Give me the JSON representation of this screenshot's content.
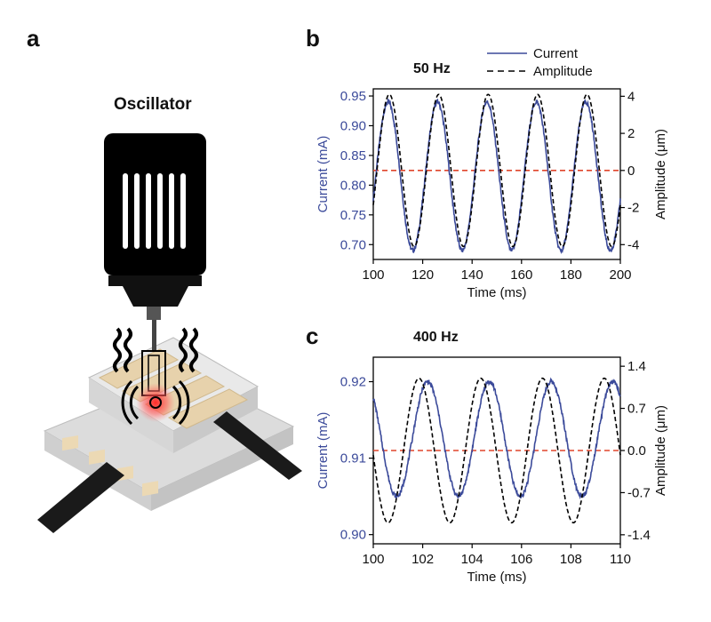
{
  "panels": {
    "a": "a",
    "b": "b",
    "c": "c"
  },
  "illustration": {
    "title": "Oscillator"
  },
  "colors": {
    "current": "#3b4a9a",
    "amplitude": "#000000",
    "zero": "#e0452b",
    "current_axis": "#3b4a9a"
  },
  "chart_data": [
    {
      "type": "line",
      "title": "50 Hz",
      "xlabel": "Time (ms)",
      "ylabel": "Current (mA)",
      "y2label": "Amplitude (μm)",
      "xlim": [
        100,
        200
      ],
      "ylim": [
        0.675,
        0.962
      ],
      "y2lim": [
        -4.8,
        4.4
      ],
      "xticks": [
        100,
        120,
        140,
        160,
        180,
        200
      ],
      "yticks": [
        0.7,
        0.75,
        0.8,
        0.85,
        0.9,
        0.95
      ],
      "y2ticks": [
        -4,
        -2,
        0,
        2,
        4
      ],
      "legend": {
        "position": "top-right",
        "entries": [
          "Current",
          "Amplitude"
        ]
      },
      "series": [
        {
          "name": "Current",
          "axis": "left",
          "frequency_hz": 50,
          "offset": 0.815,
          "amplitude": 0.125,
          "peak_time": 106,
          "noise": 0.004,
          "style": "solid"
        },
        {
          "name": "Amplitude",
          "axis": "right",
          "frequency_hz": 50,
          "offset": 0,
          "amplitude": 4.1,
          "peak_time": 106.5,
          "style": "dashed"
        }
      ],
      "zero_line": {
        "axis": "right",
        "value": 0
      }
    },
    {
      "type": "line",
      "title": "400 Hz",
      "xlabel": "Time (ms)",
      "ylabel": "Current (mA)",
      "y2label": "Amplitude (μm)",
      "xlim": [
        100,
        110
      ],
      "ylim": [
        0.8988,
        0.9232
      ],
      "y2lim": [
        -1.55,
        1.55
      ],
      "xticks": [
        100,
        102,
        104,
        106,
        108,
        110
      ],
      "yticks": [
        0.9,
        0.91,
        0.92
      ],
      "y2ticks": [
        -1.4,
        -0.7,
        0.0,
        0.7,
        1.4
      ],
      "series": [
        {
          "name": "Current",
          "axis": "left",
          "frequency_hz": 400,
          "offset": 0.9125,
          "amplitude": 0.0075,
          "peak_time": 102.2,
          "noise": 0.0003,
          "style": "solid"
        },
        {
          "name": "Amplitude",
          "axis": "right",
          "frequency_hz": 400,
          "offset": 0,
          "amplitude": 1.2,
          "peak_time": 101.85,
          "style": "dashed"
        }
      ],
      "zero_line": {
        "axis": "right",
        "value": 0
      }
    }
  ]
}
